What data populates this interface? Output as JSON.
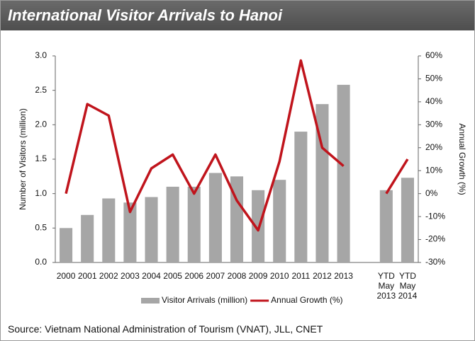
{
  "chart_data": {
    "type": "bar_line",
    "title": "International Visitor Arrivals to Hanoi",
    "y_label": "Number of Visitors (million)",
    "y2_label": "Annual Growth (%)",
    "source": "Source: Vietnam National Administration of Tourism (VNAT), JLL, CNET",
    "categories": [
      "2000",
      "2001",
      "2002",
      "2003",
      "2004",
      "2005",
      "2006",
      "2007",
      "2008",
      "2009",
      "2010",
      "2011",
      "2012",
      "2013",
      null,
      "YTD May 2013",
      "YTD May 2014"
    ],
    "series": [
      {
        "name": "Visitor Arrivals (million)",
        "type": "bar",
        "color": "#a6a6a6",
        "values": [
          0.5,
          0.69,
          0.93,
          0.87,
          0.95,
          1.1,
          1.1,
          1.3,
          1.25,
          1.05,
          1.2,
          1.9,
          2.3,
          2.58,
          null,
          1.05,
          1.23
        ]
      },
      {
        "name": "Annual Growth (%)",
        "type": "line",
        "axis": "y2",
        "color": "#c0141c",
        "values": [
          0,
          39,
          34,
          -8,
          11,
          17,
          0,
          17,
          -3,
          -16,
          14,
          58,
          20,
          12,
          null,
          0,
          15
        ]
      }
    ],
    "ylim": [
      0,
      3
    ],
    "yticks": [
      {
        "value": 0,
        "label": "0.0"
      },
      0.5,
      {
        "value": 1,
        "label": "1.0"
      },
      1.5,
      {
        "value": 2,
        "label": "2.0"
      },
      2.5,
      {
        "value": 3,
        "label": "3.0"
      }
    ],
    "y2lim": [
      -30,
      60
    ],
    "y2ticks": [
      {
        "value": -30,
        "label": "-30%"
      },
      {
        "value": -20,
        "label": "-20%"
      },
      {
        "value": -10,
        "label": "-10%"
      },
      {
        "value": 0,
        "label": "0%"
      },
      {
        "value": 10,
        "label": "10%"
      },
      {
        "value": 20,
        "label": "20%"
      },
      {
        "value": 30,
        "label": "30%"
      },
      {
        "value": 40,
        "label": "40%"
      },
      {
        "value": 50,
        "label": "50%"
      },
      {
        "value": 60,
        "label": "60%"
      }
    ],
    "grid": false,
    "legend": "bottom"
  }
}
